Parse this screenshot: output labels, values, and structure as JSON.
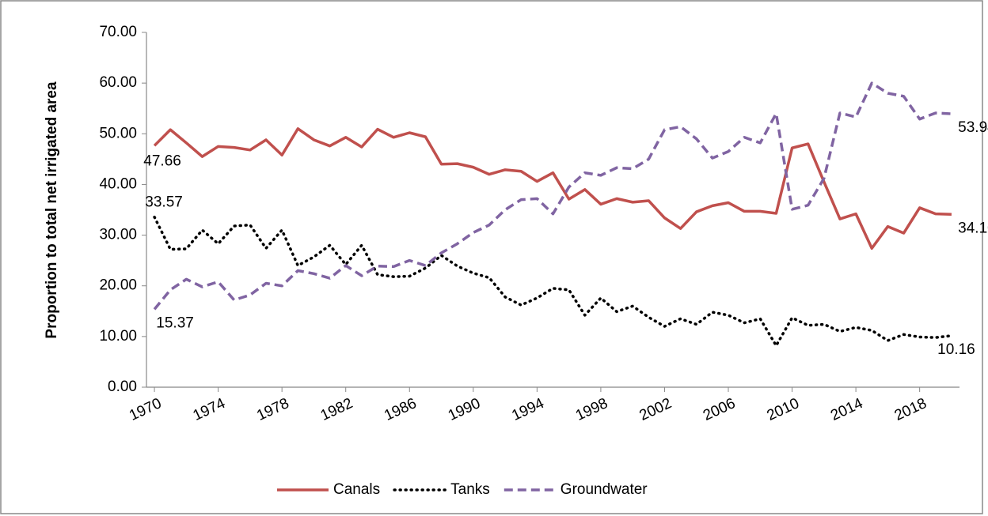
{
  "chart_data": {
    "type": "line",
    "y_label": "Proportion to total net irrigated area",
    "categories": [
      "1970",
      null,
      null,
      null,
      "1974",
      null,
      null,
      null,
      "1978",
      null,
      null,
      null,
      "1982",
      null,
      null,
      null,
      "1986",
      null,
      null,
      null,
      "1990",
      null,
      null,
      null,
      "1994",
      null,
      null,
      null,
      "1998",
      null,
      null,
      null,
      "2002",
      null,
      null,
      null,
      "2006",
      null,
      null,
      null,
      "2010",
      null,
      null,
      null,
      "2014",
      null,
      null,
      null,
      "2018",
      null,
      null
    ],
    "ylim": [
      0,
      70
    ],
    "yticks": [
      {
        "value": 0,
        "label": "0.00"
      },
      {
        "value": 10,
        "label": "10.00"
      },
      {
        "value": 20,
        "label": "20.00"
      },
      {
        "value": 30,
        "label": "30.00"
      },
      {
        "value": 40,
        "label": "40.00"
      },
      {
        "value": 50,
        "label": "50.00"
      },
      {
        "value": 60,
        "label": "60.00"
      },
      {
        "value": 70,
        "label": "70.00"
      }
    ],
    "grid": false,
    "legend": "bottom",
    "series": [
      {
        "name": "Canals",
        "color": "#c0504d",
        "style": "solid",
        "values": [
          47.66,
          50.8,
          48.2,
          45.5,
          47.5,
          47.3,
          46.8,
          48.8,
          45.8,
          51.0,
          48.8,
          47.6,
          49.3,
          47.4,
          50.9,
          49.3,
          50.2,
          49.4,
          44.0,
          44.1,
          43.4,
          42.0,
          42.9,
          42.6,
          40.6,
          42.3,
          37.1,
          39.0,
          36.1,
          37.2,
          36.5,
          36.8,
          33.4,
          31.3,
          34.6,
          35.8,
          36.4,
          34.7,
          34.7,
          34.3,
          47.2,
          48.0,
          40.5,
          33.2,
          34.2,
          27.4,
          31.7,
          30.4,
          35.4,
          34.2,
          34.1
        ],
        "value_labels": [
          "47.66",
          null,
          null,
          null,
          null,
          null,
          null,
          null,
          null,
          null,
          null,
          null,
          null,
          null,
          null,
          null,
          null,
          null,
          null,
          null,
          null,
          null,
          null,
          null,
          null,
          null,
          null,
          null,
          null,
          null,
          null,
          null,
          null,
          null,
          null,
          null,
          null,
          null,
          null,
          null,
          null,
          null,
          null,
          null,
          null,
          null,
          null,
          null,
          null,
          null,
          "34.10"
        ]
      },
      {
        "name": "Tanks",
        "color": "#000000",
        "style": "dotted",
        "values": [
          33.57,
          27.2,
          27.3,
          31.0,
          28.3,
          31.8,
          32.0,
          27.4,
          31.0,
          24.0,
          25.7,
          28.0,
          24.2,
          28.0,
          22.2,
          21.8,
          21.9,
          23.5,
          26.0,
          23.9,
          22.5,
          21.6,
          17.8,
          16.2,
          17.6,
          19.5,
          19.2,
          14.2,
          17.6,
          14.9,
          16.0,
          13.8,
          12.0,
          13.5,
          12.4,
          14.8,
          14.2,
          12.7,
          13.5,
          8.2,
          13.7,
          12.2,
          12.4,
          11.0,
          11.8,
          11.2,
          9.2,
          10.4,
          9.9,
          9.8,
          10.16
        ],
        "value_labels": [
          "33.57",
          null,
          null,
          null,
          null,
          null,
          null,
          null,
          null,
          null,
          null,
          null,
          null,
          null,
          null,
          null,
          null,
          null,
          null,
          null,
          null,
          null,
          null,
          null,
          null,
          null,
          null,
          null,
          null,
          null,
          null,
          null,
          null,
          null,
          null,
          null,
          null,
          null,
          null,
          null,
          null,
          null,
          null,
          null,
          null,
          null,
          null,
          null,
          null,
          null,
          "10.16"
        ]
      },
      {
        "name": "Groundwater",
        "color": "#8064a2",
        "style": "dashed",
        "values": [
          15.37,
          19.2,
          21.3,
          19.8,
          20.8,
          17.2,
          18.2,
          20.5,
          20.0,
          23.0,
          22.4,
          21.5,
          24.0,
          22.0,
          23.9,
          23.8,
          25.0,
          24.0,
          26.5,
          28.3,
          30.5,
          32.0,
          35.0,
          37.0,
          37.2,
          34.2,
          39.5,
          42.3,
          41.8,
          43.3,
          43.1,
          45.0,
          50.8,
          51.4,
          49.0,
          45.2,
          46.5,
          49.3,
          48.2,
          54.0,
          35.1,
          35.9,
          41.2,
          54.1,
          53.3,
          60.0,
          58.0,
          57.4,
          52.9,
          54.1,
          53.94
        ],
        "value_labels": [
          "15.37",
          null,
          null,
          null,
          null,
          null,
          null,
          null,
          null,
          null,
          null,
          null,
          null,
          null,
          null,
          null,
          null,
          null,
          null,
          null,
          null,
          null,
          null,
          null,
          null,
          null,
          null,
          null,
          null,
          null,
          null,
          null,
          null,
          null,
          null,
          null,
          null,
          null,
          null,
          null,
          null,
          null,
          null,
          null,
          null,
          null,
          null,
          null,
          null,
          null,
          "53.94"
        ]
      }
    ]
  }
}
